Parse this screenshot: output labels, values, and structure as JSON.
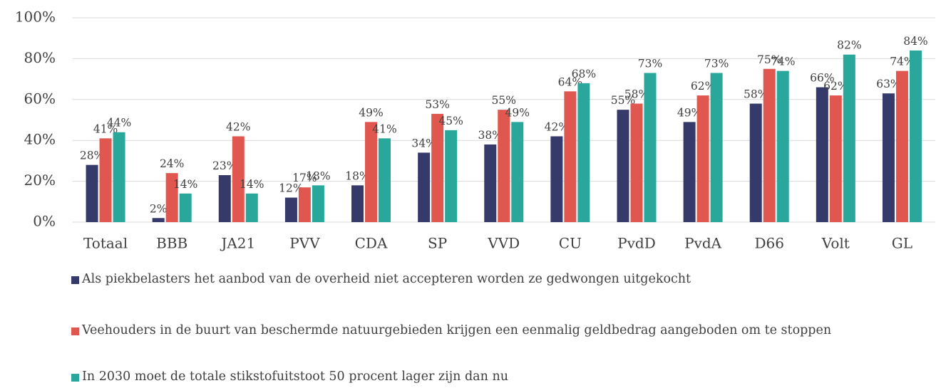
{
  "chart_data": {
    "type": "bar",
    "categories": [
      "Totaal",
      "BBB",
      "JA21",
      "PVV",
      "CDA",
      "SP",
      "VVD",
      "CU",
      "PvdD",
      "PvdA",
      "D66",
      "Volt",
      "GL"
    ],
    "series": [
      {
        "name": "Als piekbelasters het aanbod van de overheid niet accepteren worden ze gedwongen uitgekocht",
        "color": "#363a6b",
        "values": [
          28,
          2,
          23,
          12,
          18,
          34,
          38,
          42,
          55,
          49,
          58,
          66,
          63
        ],
        "value_labels": [
          "28%",
          "2%",
          "23%",
          "12%",
          "18%",
          "34%",
          "38%",
          "42%",
          "55%",
          "49%",
          "58%",
          "66%",
          "63%"
        ]
      },
      {
        "name": "Veehouders in de buurt van beschermde natuurgebieden krijgen een eenmalig geldbedrag aangeboden om te stoppen",
        "color": "#e0574f",
        "values": [
          41,
          24,
          42,
          17,
          49,
          53,
          55,
          64,
          58,
          62,
          75,
          62,
          74
        ],
        "value_labels": [
          "41%",
          "24%",
          "42%",
          "17%",
          "49%",
          "53%",
          "55%",
          "64%",
          "58%",
          "62%",
          "75%",
          "62%",
          "74%"
        ]
      },
      {
        "name": "In 2030 moet de totale stikstofuitstoot 50 procent lager zijn dan nu",
        "color": "#2aa79b",
        "values": [
          44,
          14,
          14,
          18,
          41,
          45,
          49,
          68,
          73,
          73,
          74,
          82,
          84
        ],
        "value_labels": [
          "44%",
          "14%",
          "14%",
          "18%",
          "41%",
          "45%",
          "49%",
          "68%",
          "73%",
          "73%",
          "74%",
          "82%",
          "84%"
        ]
      }
    ],
    "ylim": [
      0,
      100
    ],
    "yticks": [
      {
        "value": 0,
        "label": "0%"
      },
      {
        "value": 20,
        "label": "20%"
      },
      {
        "value": 40,
        "label": "40%"
      },
      {
        "value": 60,
        "label": "60%"
      },
      {
        "value": 80,
        "label": "80%"
      },
      {
        "value": 100,
        "label": "100%"
      }
    ],
    "grid": true
  }
}
